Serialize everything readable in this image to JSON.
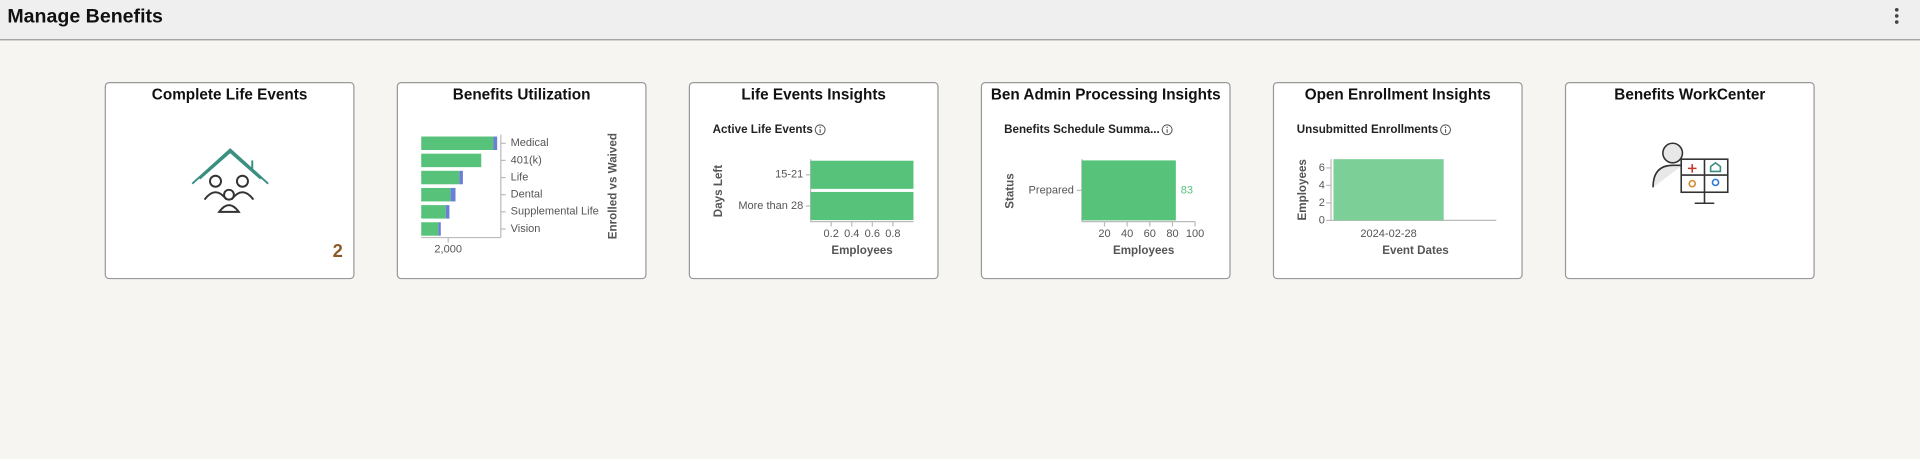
{
  "header": {
    "title": "Manage Benefits"
  },
  "tiles": [
    {
      "title": "Complete Life Events",
      "count": 2
    },
    {
      "title": "Benefits WorkCenter"
    }
  ],
  "chart_data": [
    {
      "type": "bar",
      "orientation": "horizontal",
      "stacked": true,
      "title": "Benefits Utilization",
      "categories": [
        "Medical",
        "401(k)",
        "Life",
        "Dental",
        "Supplemental Life",
        "Vision"
      ],
      "series": [
        {
          "color": "#57c27a",
          "values": [
            5360,
            4450,
            2820,
            2180,
            1820,
            1270
          ]
        },
        {
          "color": "#6b7fd7",
          "values": [
            270,
            0,
            270,
            360,
            270,
            180
          ]
        }
      ],
      "xlim": [
        0,
        5900
      ],
      "xticks": [
        {
          "value": 2000,
          "label": "2,000"
        }
      ],
      "ylabel": "Enrolled vs Waived"
    },
    {
      "type": "bar",
      "orientation": "horizontal",
      "title": "Life Events Insights",
      "subtitle": "Active Life Events",
      "categories": [
        "15-21",
        "More than 28"
      ],
      "values": [
        1,
        1
      ],
      "color": "#57c27a",
      "xlim": [
        0,
        1
      ],
      "xticks": [
        0.2,
        0.4,
        0.6,
        0.8
      ],
      "xlabel": "Employees",
      "ylabel": "Days Left"
    },
    {
      "type": "bar",
      "orientation": "horizontal",
      "title": "Ben Admin Processing Insights",
      "subtitle": "Benefits Schedule Summa...",
      "categories": [
        "Prepared"
      ],
      "values": [
        83
      ],
      "color": "#57c27a",
      "data_labels": true,
      "xlim": [
        0,
        100
      ],
      "xticks": [
        20,
        40,
        60,
        80,
        100
      ],
      "xlabel": "Employees",
      "ylabel": "Status"
    },
    {
      "type": "bar",
      "orientation": "vertical",
      "title": "Open Enrollment Insights",
      "subtitle": "Unsubmitted Enrollments",
      "categories": [
        "2024-02-28"
      ],
      "values": [
        7
      ],
      "color": "#7dcf98",
      "ylim": [
        0,
        7
      ],
      "yticks": [
        0,
        2,
        4,
        6
      ],
      "xlabel": "Event Dates",
      "ylabel": "Employees"
    }
  ]
}
